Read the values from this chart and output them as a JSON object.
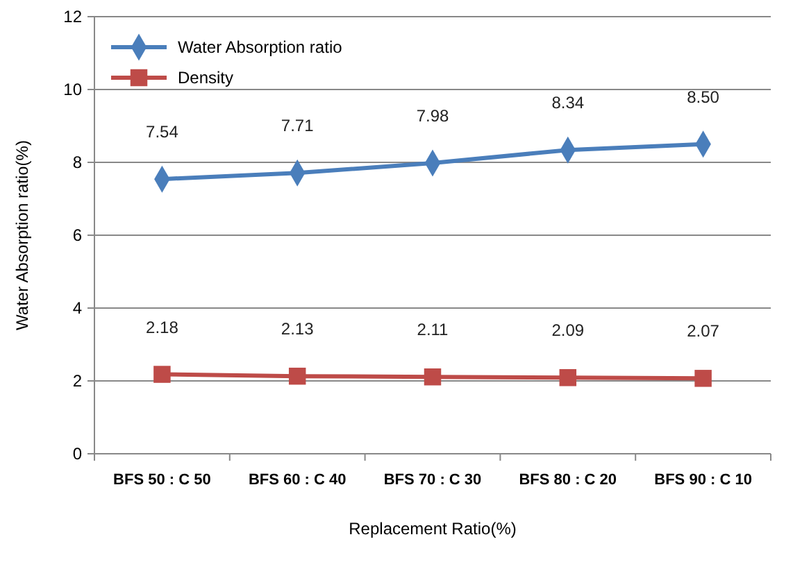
{
  "chart_data": {
    "type": "line",
    "xlabel": "Replacement Ratio(%)",
    "ylabel": "Water Absorption ratio(%)",
    "categories": [
      "BFS 50 : C 50",
      "BFS 60 : C 40",
      "BFS 70 : C 30",
      "BFS 80 : C 20",
      "BFS 90 : C 10"
    ],
    "series": [
      {
        "name": "Water Absorption ratio",
        "color": "#4a7ebb",
        "marker": "diamond",
        "values": [
          7.54,
          7.71,
          7.98,
          8.34,
          8.5
        ],
        "value_labels": [
          "7.54",
          "7.71",
          "7.98",
          "8.34",
          "8.50"
        ]
      },
      {
        "name": "Density",
        "color": "#be4b48",
        "marker": "square",
        "values": [
          2.18,
          2.13,
          2.11,
          2.09,
          2.07
        ],
        "value_labels": [
          "2.18",
          "2.13",
          "2.11",
          "2.09",
          "2.07"
        ]
      }
    ],
    "ylim": [
      0,
      12
    ],
    "yticks": [
      0,
      2,
      4,
      6,
      8,
      10,
      12
    ],
    "grid": "y",
    "legend": "top left"
  }
}
